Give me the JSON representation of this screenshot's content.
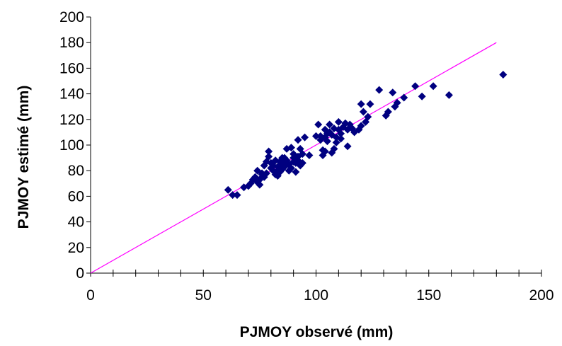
{
  "chart_data": {
    "type": "scatter",
    "title": "",
    "xlabel": "PJMOY observé (mm)",
    "ylabel": "PJMOY estimé (mm)",
    "xlim": [
      0,
      200
    ],
    "ylim": [
      0,
      200
    ],
    "x_ticks": [
      0,
      50,
      100,
      150,
      200
    ],
    "y_ticks": [
      0,
      20,
      40,
      60,
      80,
      100,
      120,
      140,
      160,
      180,
      200
    ],
    "grid": false,
    "legend": "none",
    "marker": "diamond",
    "marker_color": "#000080",
    "reference_line": {
      "x": [
        0,
        180
      ],
      "y": [
        0,
        180
      ],
      "color": "#ff00ff"
    },
    "points": [
      [
        61,
        65
      ],
      [
        63,
        61
      ],
      [
        65,
        61
      ],
      [
        68,
        67
      ],
      [
        70,
        68
      ],
      [
        71,
        70
      ],
      [
        72,
        73
      ],
      [
        73,
        75
      ],
      [
        74,
        71
      ],
      [
        74,
        80
      ],
      [
        75,
        69
      ],
      [
        75,
        73
      ],
      [
        76,
        77
      ],
      [
        76,
        78
      ],
      [
        77,
        75
      ],
      [
        77,
        84
      ],
      [
        78,
        78
      ],
      [
        78,
        87
      ],
      [
        79,
        91
      ],
      [
        79,
        95
      ],
      [
        80,
        82
      ],
      [
        80,
        86
      ],
      [
        81,
        80
      ],
      [
        81,
        84
      ],
      [
        82,
        77
      ],
      [
        82,
        88
      ],
      [
        83,
        76
      ],
      [
        83,
        80
      ],
      [
        83,
        83
      ],
      [
        84,
        79
      ],
      [
        84,
        84
      ],
      [
        84,
        87
      ],
      [
        85,
        81
      ],
      [
        85,
        89
      ],
      [
        85,
        90
      ],
      [
        86,
        83
      ],
      [
        86,
        86
      ],
      [
        86,
        90
      ],
      [
        87,
        88
      ],
      [
        87,
        97
      ],
      [
        88,
        80
      ],
      [
        88,
        85
      ],
      [
        89,
        82
      ],
      [
        89,
        98
      ],
      [
        90,
        87
      ],
      [
        90,
        90
      ],
      [
        90,
        93
      ],
      [
        91,
        79
      ],
      [
        91,
        86
      ],
      [
        91,
        89
      ],
      [
        92,
        88
      ],
      [
        92,
        91
      ],
      [
        92,
        104
      ],
      [
        93,
        84
      ],
      [
        93,
        97
      ],
      [
        94,
        86
      ],
      [
        94,
        93
      ],
      [
        95,
        106
      ],
      [
        97,
        92
      ],
      [
        100,
        107
      ],
      [
        101,
        116
      ],
      [
        102,
        104
      ],
      [
        102,
        107
      ],
      [
        103,
        92
      ],
      [
        103,
        96
      ],
      [
        104,
        95
      ],
      [
        104,
        106
      ],
      [
        104,
        112
      ],
      [
        105,
        103
      ],
      [
        105,
        109
      ],
      [
        106,
        110
      ],
      [
        106,
        116
      ],
      [
        107,
        108
      ],
      [
        107,
        94
      ],
      [
        108,
        97
      ],
      [
        108,
        113
      ],
      [
        109,
        102
      ],
      [
        109,
        106
      ],
      [
        110,
        112
      ],
      [
        110,
        118
      ],
      [
        111,
        105
      ],
      [
        111,
        109
      ],
      [
        112,
        114
      ],
      [
        113,
        117
      ],
      [
        114,
        99
      ],
      [
        114,
        112
      ],
      [
        115,
        116
      ],
      [
        116,
        113
      ],
      [
        117,
        110
      ],
      [
        119,
        112
      ],
      [
        120,
        132
      ],
      [
        120,
        115
      ],
      [
        121,
        126
      ],
      [
        122,
        118
      ],
      [
        123,
        122
      ],
      [
        124,
        132
      ],
      [
        128,
        143
      ],
      [
        131,
        123
      ],
      [
        132,
        126
      ],
      [
        134,
        141
      ],
      [
        135,
        130
      ],
      [
        136,
        133
      ],
      [
        139,
        137
      ],
      [
        144,
        146
      ],
      [
        147,
        138
      ],
      [
        152,
        146
      ],
      [
        159,
        139
      ],
      [
        183,
        155
      ]
    ]
  }
}
